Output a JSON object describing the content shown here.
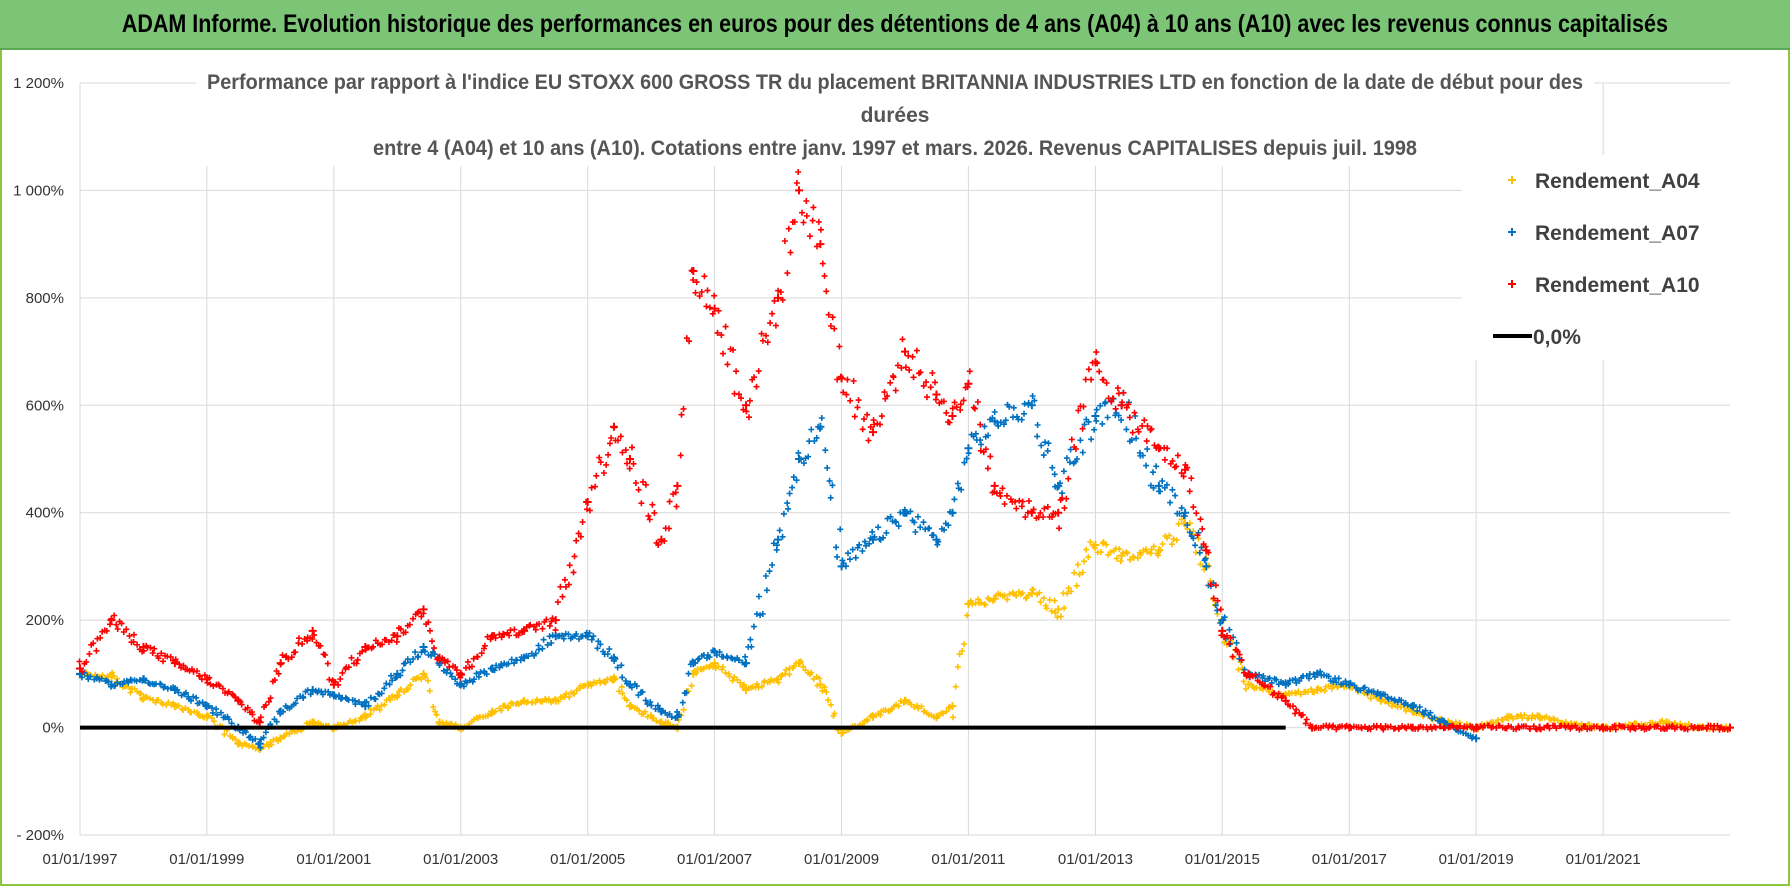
{
  "banner": {
    "title": "ADAM Informe. Evolution historique des performances en euros pour des détentions de 4 ans (A04) à 10 ans (A10) avec les revenus connus capitalisés"
  },
  "chart_data": {
    "type": "scatter",
    "title_lines": [
      "Performance par rapport à l'indice EU STOXX 600 GROSS TR  du placement BRITANNIA INDUSTRIES LTD en fonction de la date de début pour des",
      "durées",
      "entre 4 (A04) et 10 ans (A10). Cotations entre janv. 1997 et mars. 2026. Revenus CAPITALISES depuis juil. 1998"
    ],
    "xlabel": "",
    "ylabel": "",
    "xlim": [
      "1997-01-01",
      "2023-01-01"
    ],
    "ylim": [
      -200,
      1200
    ],
    "x_tick_labels": [
      "01/01/1997",
      "01/01/1999",
      "01/01/2001",
      "01/01/2003",
      "01/01/2005",
      "01/01/2007",
      "01/01/2009",
      "01/01/2011",
      "01/01/2013",
      "01/01/2015",
      "01/01/2017",
      "01/01/2019",
      "01/01/2021"
    ],
    "x_tick_values": [
      "1997-01-01",
      "1999-01-01",
      "2001-01-01",
      "2003-01-01",
      "2005-01-01",
      "2007-01-01",
      "2009-01-01",
      "2011-01-01",
      "2013-01-01",
      "2015-01-01",
      "2017-01-01",
      "2019-01-01",
      "2021-01-01"
    ],
    "y_tick_labels": [
      "- 200%",
      "0%",
      "200%",
      "400%",
      "600%",
      "800%",
      "1 000%",
      "1 200%"
    ],
    "y_tick_values": [
      -200,
      0,
      200,
      400,
      600,
      800,
      1000,
      1200
    ],
    "grid": true,
    "legend_position": "top-right",
    "series": [
      {
        "name": "Rendement_A04",
        "color": "#ffc000",
        "marker": "plus",
        "points": [
          [
            "1997-01-01",
            100
          ],
          [
            "1997-07-01",
            95
          ],
          [
            "1998-01-01",
            55
          ],
          [
            "1998-07-01",
            40
          ],
          [
            "1999-01-01",
            20
          ],
          [
            "1999-07-01",
            -30
          ],
          [
            "1999-11-01",
            -40
          ],
          [
            "2000-03-01",
            -20
          ],
          [
            "2000-09-01",
            10
          ],
          [
            "2001-01-01",
            0
          ],
          [
            "2001-07-01",
            20
          ],
          [
            "2002-01-01",
            60
          ],
          [
            "2002-06-01",
            100
          ],
          [
            "2002-09-01",
            10
          ],
          [
            "2003-01-01",
            0
          ],
          [
            "2003-07-01",
            30
          ],
          [
            "2004-01-01",
            50
          ],
          [
            "2004-07-01",
            50
          ],
          [
            "2005-01-01",
            80
          ],
          [
            "2005-06-01",
            90
          ],
          [
            "2005-09-01",
            40
          ],
          [
            "2006-03-01",
            10
          ],
          [
            "2006-06-01",
            0
          ],
          [
            "2006-09-01",
            100
          ],
          [
            "2007-01-01",
            120
          ],
          [
            "2007-07-01",
            70
          ],
          [
            "2008-01-01",
            90
          ],
          [
            "2008-05-01",
            120
          ],
          [
            "2008-09-01",
            80
          ],
          [
            "2009-01-01",
            -10
          ],
          [
            "2009-07-01",
            20
          ],
          [
            "2010-01-01",
            50
          ],
          [
            "2010-07-01",
            20
          ],
          [
            "2010-10-01",
            40
          ],
          [
            "2011-01-01",
            230
          ],
          [
            "2011-06-01",
            240
          ],
          [
            "2012-01-01",
            250
          ],
          [
            "2012-06-01",
            220
          ],
          [
            "2013-01-01",
            340
          ],
          [
            "2013-06-01",
            320
          ],
          [
            "2014-01-01",
            330
          ],
          [
            "2014-06-01",
            380
          ],
          [
            "2014-10-01",
            300
          ],
          [
            "2015-01-01",
            180
          ],
          [
            "2015-06-01",
            80
          ],
          [
            "2016-01-01",
            60
          ],
          [
            "2016-07-01",
            70
          ],
          [
            "2017-01-01",
            80
          ],
          [
            "2017-07-01",
            50
          ],
          [
            "2018-01-01",
            30
          ],
          [
            "2018-07-01",
            10
          ],
          [
            "2019-01-01",
            0
          ],
          [
            "2019-07-01",
            20
          ],
          [
            "2020-01-01",
            20
          ],
          [
            "2020-07-01",
            5
          ],
          [
            "2021-01-01",
            0
          ],
          [
            "2021-07-01",
            5
          ],
          [
            "2022-01-01",
            10
          ],
          [
            "2022-07-01",
            0
          ],
          [
            "2023-01-01",
            0
          ]
        ]
      },
      {
        "name": "Rendement_A07",
        "color": "#0070c0",
        "marker": "plus",
        "points": [
          [
            "1997-01-01",
            100
          ],
          [
            "1997-07-01",
            80
          ],
          [
            "1998-01-01",
            90
          ],
          [
            "1998-07-01",
            70
          ],
          [
            "1999-01-01",
            40
          ],
          [
            "1999-07-01",
            0
          ],
          [
            "1999-11-01",
            -30
          ],
          [
            "2000-03-01",
            30
          ],
          [
            "2000-09-01",
            70
          ],
          [
            "2001-01-01",
            60
          ],
          [
            "2001-07-01",
            40
          ],
          [
            "2002-01-01",
            100
          ],
          [
            "2002-06-01",
            150
          ],
          [
            "2002-09-01",
            120
          ],
          [
            "2003-01-01",
            80
          ],
          [
            "2003-07-01",
            110
          ],
          [
            "2004-01-01",
            130
          ],
          [
            "2004-07-01",
            170
          ],
          [
            "2005-01-01",
            170
          ],
          [
            "2005-06-01",
            130
          ],
          [
            "2005-09-01",
            80
          ],
          [
            "2006-03-01",
            30
          ],
          [
            "2006-06-01",
            20
          ],
          [
            "2006-09-01",
            120
          ],
          [
            "2007-01-01",
            140
          ],
          [
            "2007-07-01",
            120
          ],
          [
            "2008-01-01",
            350
          ],
          [
            "2008-05-01",
            500
          ],
          [
            "2008-09-01",
            560
          ],
          [
            "2009-01-01",
            300
          ],
          [
            "2009-07-01",
            350
          ],
          [
            "2010-01-01",
            400
          ],
          [
            "2010-07-01",
            350
          ],
          [
            "2010-10-01",
            400
          ],
          [
            "2011-01-01",
            520
          ],
          [
            "2011-06-01",
            570
          ],
          [
            "2012-01-01",
            600
          ],
          [
            "2012-06-01",
            450
          ],
          [
            "2013-01-01",
            580
          ],
          [
            "2013-06-01",
            600
          ],
          [
            "2014-01-01",
            450
          ],
          [
            "2014-06-01",
            400
          ],
          [
            "2014-10-01",
            300
          ],
          [
            "2015-01-01",
            200
          ],
          [
            "2015-06-01",
            100
          ],
          [
            "2016-01-01",
            80
          ],
          [
            "2016-07-01",
            100
          ],
          [
            "2017-01-01",
            80
          ],
          [
            "2017-07-01",
            60
          ],
          [
            "2018-01-01",
            40
          ],
          [
            "2018-07-01",
            10
          ],
          [
            "2019-01-01",
            -20
          ]
        ]
      },
      {
        "name": "Rendement_A10",
        "color": "#ff0000",
        "marker": "plus",
        "points": [
          [
            "1997-01-01",
            110
          ],
          [
            "1997-07-01",
            200
          ],
          [
            "1998-01-01",
            150
          ],
          [
            "1998-07-01",
            120
          ],
          [
            "1999-01-01",
            90
          ],
          [
            "1999-07-01",
            50
          ],
          [
            "1999-11-01",
            10
          ],
          [
            "2000-03-01",
            120
          ],
          [
            "2000-09-01",
            180
          ],
          [
            "2001-01-01",
            80
          ],
          [
            "2001-07-01",
            150
          ],
          [
            "2002-01-01",
            170
          ],
          [
            "2002-06-01",
            220
          ],
          [
            "2002-09-01",
            130
          ],
          [
            "2003-01-01",
            100
          ],
          [
            "2003-07-01",
            170
          ],
          [
            "2004-01-01",
            180
          ],
          [
            "2004-07-01",
            200
          ],
          [
            "2005-01-01",
            420
          ],
          [
            "2005-06-01",
            560
          ],
          [
            "2005-09-01",
            500
          ],
          [
            "2006-03-01",
            350
          ],
          [
            "2006-06-01",
            450
          ],
          [
            "2006-09-01",
            850
          ],
          [
            "2007-01-01",
            780
          ],
          [
            "2007-07-01",
            600
          ],
          [
            "2008-01-01",
            800
          ],
          [
            "2008-05-01",
            1000
          ],
          [
            "2008-09-01",
            900
          ],
          [
            "2009-01-01",
            650
          ],
          [
            "2009-07-01",
            550
          ],
          [
            "2010-01-01",
            700
          ],
          [
            "2010-07-01",
            620
          ],
          [
            "2010-10-01",
            580
          ],
          [
            "2011-01-01",
            640
          ],
          [
            "2011-06-01",
            450
          ],
          [
            "2012-01-01",
            400
          ],
          [
            "2012-06-01",
            400
          ],
          [
            "2013-01-01",
            680
          ],
          [
            "2013-06-01",
            600
          ],
          [
            "2014-01-01",
            520
          ],
          [
            "2014-06-01",
            480
          ],
          [
            "2014-10-01",
            330
          ],
          [
            "2015-01-01",
            180
          ],
          [
            "2015-06-01",
            100
          ],
          [
            "2016-01-01",
            50
          ],
          [
            "2016-06-01",
            0
          ],
          [
            "2017-01-01",
            0
          ],
          [
            "2018-01-01",
            0
          ],
          [
            "2019-01-01",
            0
          ],
          [
            "2020-01-01",
            0
          ],
          [
            "2021-01-01",
            0
          ],
          [
            "2022-01-01",
            0
          ],
          [
            "2023-01-01",
            0
          ]
        ]
      },
      {
        "name": "0,0%",
        "color": "#000000",
        "marker": "line",
        "points": [
          [
            "1997-01-01",
            0
          ],
          [
            "2016-01-01",
            0
          ]
        ]
      }
    ]
  }
}
